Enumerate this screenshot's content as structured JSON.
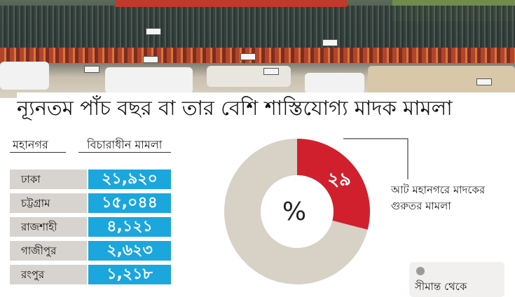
{
  "headline": "ন্যূনতম পাঁচ বছর বা তার বেশি শাস্তিযোগ্য মাদক মামলা",
  "table": {
    "col1_header": "মহানগর",
    "col2_header": "বিচারাধীন মামলা",
    "rows": [
      {
        "city": "ঢাকা",
        "cases": "২১,৯২০"
      },
      {
        "city": "চট্টগ্রাম",
        "cases": "১৫,০৪৪"
      },
      {
        "city": "রাজশাহী",
        "cases": "৪,১২১"
      },
      {
        "city": "গাজীপুর",
        "cases": "২,৬২৩"
      },
      {
        "city": "রংপুর",
        "cases": "১,২১৮"
      }
    ]
  },
  "chart_data": {
    "type": "pie",
    "center_label": "%",
    "slices": [
      {
        "label": "আট মহানগরে মাদকের গুরুতর মামলা",
        "value": 29,
        "value_label": "২৯",
        "color": "#d0202e"
      },
      {
        "label": "",
        "value": 71,
        "color": "#d8d1c5"
      }
    ],
    "annotation": "আট মহানগরে মাদকের গুরুতর মামলা",
    "legend_partial": "সীমান্ত থেকে"
  },
  "colors": {
    "accent_blue": "#1ba6de",
    "slice_red": "#d0202e",
    "slice_beige": "#d8d1c5",
    "label_grey": "#d7d4cf"
  }
}
